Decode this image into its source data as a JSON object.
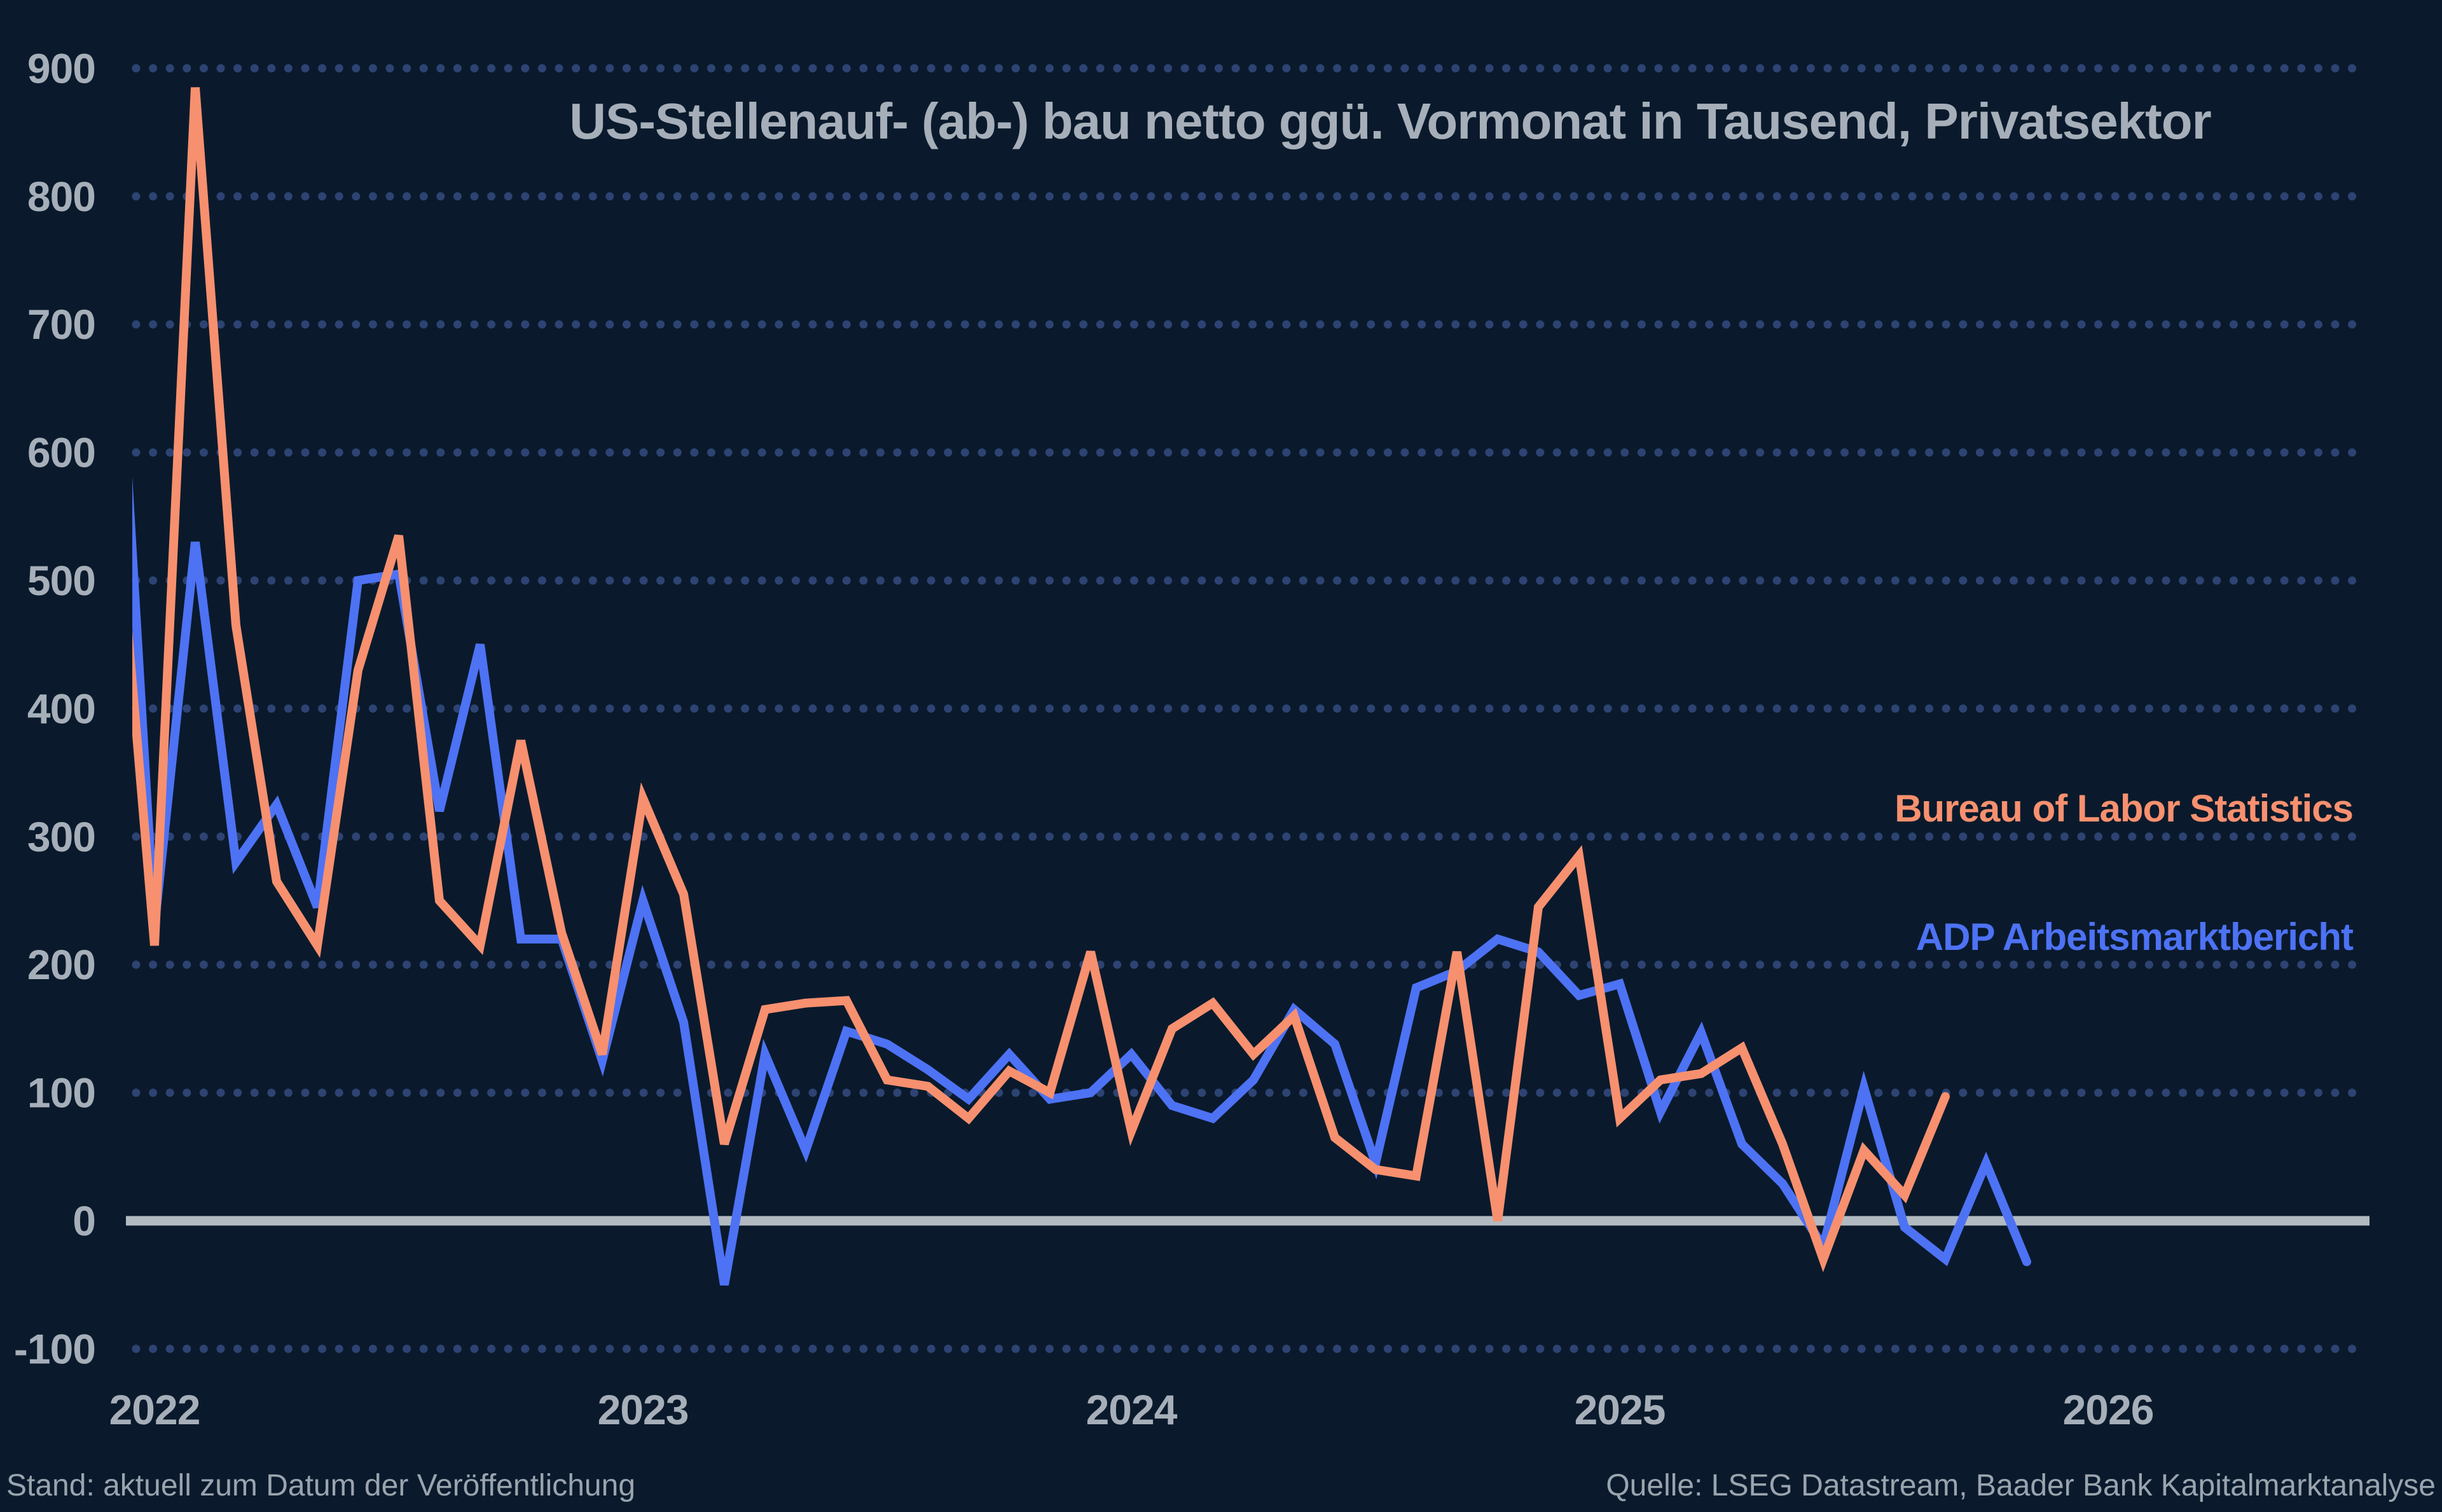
{
  "title": "US-Stellenauf- (ab-) bau netto ggü. Vormonat in Tausend, Privatsektor",
  "footer": {
    "left": "Stand: aktuell zum Datum der Veröffentlichung",
    "right": "Quelle: LSEG Datastream, Baader Bank Kapitalmarktanalyse"
  },
  "colors": {
    "background": "#0a1a2c",
    "grid_dots": "#2d4373",
    "zero_line": "#b2bac1",
    "axis_text": "#a6afb9",
    "footer_text": "#9aa4ae",
    "bls": "#f7906f",
    "adp": "#4d72f4"
  },
  "chart_data": {
    "type": "line",
    "title": "US-Stellenauf- (ab-) bau netto ggü. Vormonat in Tausend, Privatsektor",
    "xlabel": "",
    "ylabel": "",
    "ylim": [
      -100,
      900
    ],
    "grid": "dotted horizontal gridlines at each ytick except 0; solid gray horizontal line at 0",
    "legend_position": "right, stacked labels colored like their series",
    "months": [
      "2021-12",
      "2022-01",
      "2022-02",
      "2022-03",
      "2022-04",
      "2022-05",
      "2022-06",
      "2022-07",
      "2022-08",
      "2022-09",
      "2022-10",
      "2022-11",
      "2022-12",
      "2023-01",
      "2023-02",
      "2023-03",
      "2023-04",
      "2023-05",
      "2023-06",
      "2023-07",
      "2023-08",
      "2023-09",
      "2023-10",
      "2023-11",
      "2023-12",
      "2024-01",
      "2024-02",
      "2024-03",
      "2024-04",
      "2024-05",
      "2024-06",
      "2024-07",
      "2024-08",
      "2024-09",
      "2024-10",
      "2024-11",
      "2024-12",
      "2025-01",
      "2025-02",
      "2025-03",
      "2025-04",
      "2025-05",
      "2025-06",
      "2025-07",
      "2025-08",
      "2025-09",
      "2025-10",
      "2025-11"
    ],
    "series": [
      {
        "name": "ADP Arbeitsmarktbericht",
        "color_key": "adp",
        "values": [
          765,
          230,
          530,
          280,
          325,
          245,
          500,
          505,
          320,
          450,
          220,
          220,
          125,
          250,
          155,
          -50,
          130,
          55,
          148,
          138,
          118,
          95,
          130,
          95,
          100,
          130,
          90,
          80,
          110,
          165,
          138,
          45,
          182,
          195,
          220,
          210,
          176,
          185,
          85,
          147,
          60,
          29,
          -20,
          104,
          -5,
          -30,
          45,
          -32
        ]
      },
      {
        "name": "Bureau of Labor Statistics",
        "color_key": "bls",
        "values": [
          590,
          215,
          885,
          465,
          265,
          215,
          430,
          535,
          250,
          215,
          375,
          225,
          130,
          330,
          255,
          60,
          165,
          170,
          172,
          110,
          105,
          80,
          117,
          100,
          210,
          70,
          150,
          170,
          130,
          160,
          65,
          40,
          35,
          210,
          0,
          245,
          285,
          80,
          110,
          115,
          135,
          60,
          -30,
          55,
          20,
          97,
          null,
          null
        ]
      }
    ],
    "yticks": [
      900,
      800,
      700,
      600,
      500,
      400,
      300,
      200,
      100,
      0,
      -100
    ],
    "xticks": [
      {
        "label": "2022",
        "month_index": 1
      },
      {
        "label": "2023",
        "month_index": 13
      },
      {
        "label": "2024",
        "month_index": 25
      },
      {
        "label": "2025",
        "month_index": 37
      },
      {
        "label": "2026",
        "month_index": 49
      }
    ]
  }
}
